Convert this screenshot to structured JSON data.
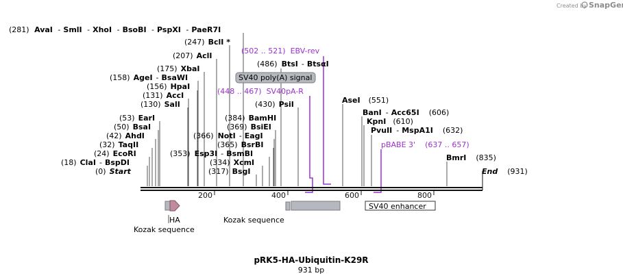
{
  "credit": {
    "prefix": "Created by",
    "brand": "SnapGene"
  },
  "plasmid": {
    "name": "pRK5-HA-Ubiquitin-K29R",
    "length": "931 bp"
  },
  "sites": {
    "row_aval": {
      "pos": "(281)",
      "enz": [
        "AvaI",
        "SmlI",
        "XhoI",
        "BsoBI",
        "PspXI",
        "PaeR7I"
      ]
    },
    "bcli": {
      "pos": "(247)",
      "enz": "BclI *"
    },
    "acli": {
      "pos": "(207)",
      "enz": "AclI"
    },
    "xbai": {
      "pos": "(175)",
      "enz": "XbaI"
    },
    "agei": {
      "pos": "(158)",
      "enz": "AgeI",
      "alt": "BsaWI"
    },
    "hpai": {
      "pos": "(156)",
      "enz": "HpaI"
    },
    "acci": {
      "pos": "(131)",
      "enz": "AccI"
    },
    "sali": {
      "pos": "(130)",
      "enz": "SalI"
    },
    "eari": {
      "pos": "(53)",
      "enz": "EarI"
    },
    "bsai": {
      "pos": "(50)",
      "enz": "BsaI"
    },
    "ahdi": {
      "pos": "(42)",
      "enz": "AhdI"
    },
    "taqii": {
      "pos": "(32)",
      "enz": "TaqII"
    },
    "ecori": {
      "pos": "(24)",
      "enz": "EcoRI"
    },
    "clai": {
      "pos": "(18)",
      "enz": "ClaI",
      "alt": "BspDI"
    },
    "start": {
      "pos": "(0)",
      "enz": "Start"
    },
    "btsi": {
      "pos": "(486)",
      "enz": "BtsI",
      "alt": "BtsαI"
    },
    "psii": {
      "pos": "(430)",
      "enz": "PsiI"
    },
    "bamhi": {
      "pos": "(384)",
      "enz": "BamHI"
    },
    "bsiei": {
      "pos": "(369)",
      "enz": "BsiEI"
    },
    "noti": {
      "pos": "(366)",
      "enz": "NotI",
      "alt": "EagI"
    },
    "bsrbi": {
      "pos": "(365)",
      "enz": "BsrBI"
    },
    "esp3i": {
      "pos": "(353)",
      "enz": "Esp3I",
      "alt": "BsmBI"
    },
    "xcmi": {
      "pos": "(334)",
      "enz": "XcmI"
    },
    "bsgi": {
      "pos": "(317)",
      "enz": "BsgI"
    },
    "asei": {
      "pos": "(551)",
      "enz": "AseI"
    },
    "bani": {
      "pos": "(606)",
      "enz": "BanI",
      "alt": "Acc65I"
    },
    "kpni": {
      "pos": "(610)",
      "enz": "KpnI"
    },
    "pvuii": {
      "pos": "(632)",
      "enz": "PvuII",
      "alt": "MspA1I"
    },
    "bmri": {
      "pos": "(835)",
      "enz": "BmrI"
    },
    "end": {
      "pos": "(931)",
      "enz": "End"
    }
  },
  "primers": {
    "ebv_rev": {
      "range": "(502 .. 521)",
      "name": "EBV-rev"
    },
    "sv40pa_r": {
      "range": "(448 .. 467)",
      "name": "SV40pA-R"
    },
    "pbabe3": {
      "name": "pBABE 3'",
      "range": "(637 .. 657)"
    }
  },
  "ticks": [
    "200",
    "400",
    "600",
    "800"
  ],
  "features": {
    "polya": "SV40 poly(A) signal",
    "ha": "HA",
    "kozak1": "Kozak sequence",
    "kozak2": "Kozak sequence",
    "enhancer": "SV40 enhancer"
  },
  "colors": {
    "primer": "#9b30d0",
    "feature_gray": "#b5b8be",
    "ha_pink": "#c28a9f",
    "line": "#555555"
  }
}
